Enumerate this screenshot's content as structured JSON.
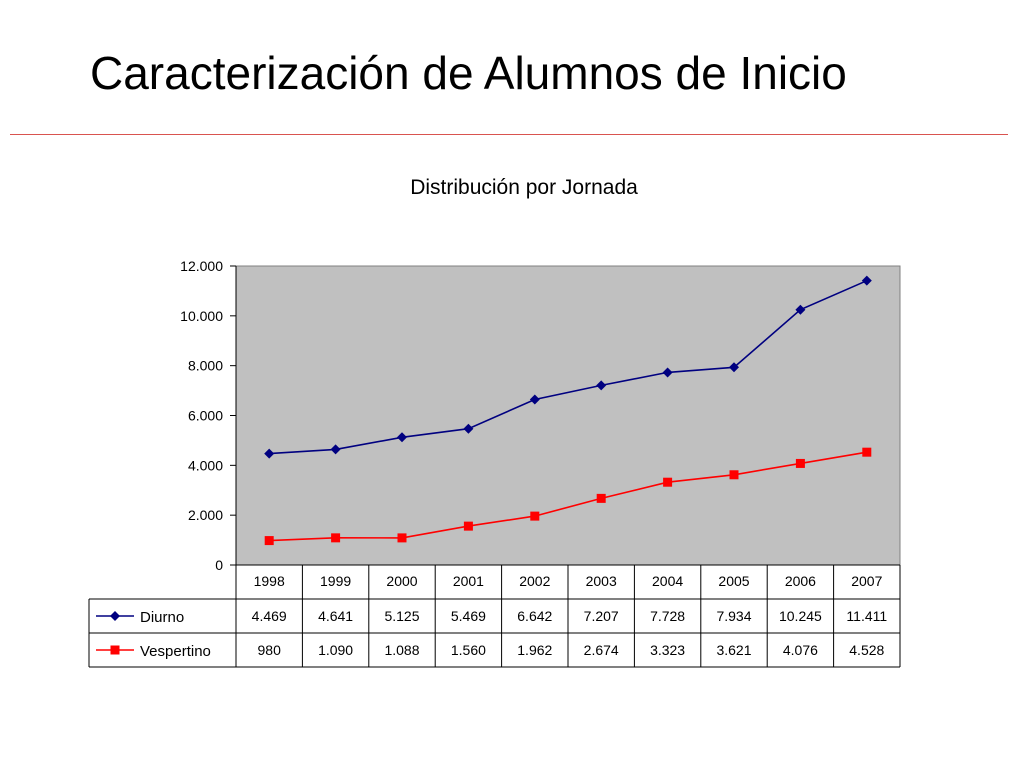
{
  "slide": {
    "title": "Caracterización de Alumnos de Inicio"
  },
  "chart_data": {
    "type": "line",
    "title": "Distribución por Jornada",
    "xlabel": "",
    "ylabel": "",
    "categories": [
      "1998",
      "1999",
      "2000",
      "2001",
      "2002",
      "2003",
      "2004",
      "2005",
      "2006",
      "2007"
    ],
    "ylim": [
      0,
      12000
    ],
    "yticks": [
      0,
      2000,
      4000,
      6000,
      8000,
      10000,
      12000
    ],
    "ytick_labels": [
      "0",
      "2.000",
      "4.000",
      "6.000",
      "8.000",
      "10.000",
      "12.000"
    ],
    "grid": false,
    "plot_background": "#c0c0c0",
    "legend_placement": "data-table",
    "series": [
      {
        "name": "Diurno",
        "color": "#000080",
        "marker": "diamond",
        "values": [
          4469,
          4641,
          5125,
          5469,
          6642,
          7207,
          7728,
          7934,
          10245,
          11411
        ],
        "labels": [
          "4.469",
          "4.641",
          "5.125",
          "5.469",
          "6.642",
          "7.207",
          "7.728",
          "7.934",
          "10.245",
          "11.411"
        ]
      },
      {
        "name": "Vespertino",
        "color": "#ff0000",
        "marker": "square",
        "values": [
          980,
          1090,
          1088,
          1560,
          1962,
          2674,
          3323,
          3621,
          4076,
          4528
        ],
        "labels": [
          "980",
          "1.090",
          "1.088",
          "1.560",
          "1.962",
          "2.674",
          "3.323",
          "3.621",
          "4.076",
          "4.528"
        ]
      }
    ]
  }
}
